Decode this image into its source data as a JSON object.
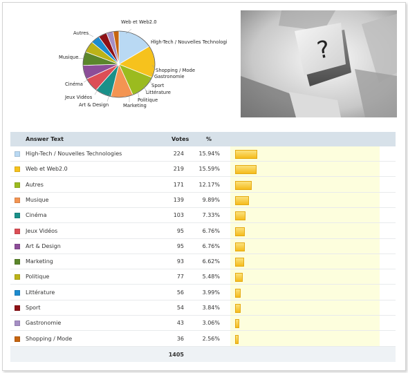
{
  "table": {
    "headers": {
      "answer": "Answer Text",
      "votes": "Votes",
      "percent": "%"
    },
    "total": "1405",
    "rows": [
      {
        "label": "High-Tech / Nouvelles Technologies",
        "votes": "224",
        "percent": "15.94%",
        "share": 0.1594,
        "color": "#b9d9f3"
      },
      {
        "label": "Web et Web2.0",
        "votes": "219",
        "percent": "15.59%",
        "share": 0.1559,
        "color": "#f6c21d"
      },
      {
        "label": "Autres",
        "votes": "171",
        "percent": "12.17%",
        "share": 0.1217,
        "color": "#9bbb1f"
      },
      {
        "label": "Musique",
        "votes": "139",
        "percent": "9.89%",
        "share": 0.0989,
        "color": "#f39452"
      },
      {
        "label": "Cinéma",
        "votes": "103",
        "percent": "7.33%",
        "share": 0.0733,
        "color": "#1a9089"
      },
      {
        "label": "Jeux Vidéos",
        "votes": "95",
        "percent": "6.76%",
        "share": 0.0676,
        "color": "#dc4e56"
      },
      {
        "label": "Art & Design",
        "votes": "95",
        "percent": "6.76%",
        "share": 0.0676,
        "color": "#8c4d98"
      },
      {
        "label": "Marketing",
        "votes": "93",
        "percent": "6.62%",
        "share": 0.0662,
        "color": "#5b862b"
      },
      {
        "label": "Politique",
        "votes": "77",
        "percent": "5.48%",
        "share": 0.0548,
        "color": "#bcb318"
      },
      {
        "label": "Littérature",
        "votes": "56",
        "percent": "3.99%",
        "share": 0.0399,
        "color": "#1d8bcf"
      },
      {
        "label": "Sport",
        "votes": "54",
        "percent": "3.84%",
        "share": 0.0384,
        "color": "#8e1116"
      },
      {
        "label": "Gastronomie",
        "votes": "43",
        "percent": "3.06%",
        "share": 0.0306,
        "color": "#a58fc4"
      },
      {
        "label": "Shopping / Mode",
        "votes": "36",
        "percent": "2.56%",
        "share": 0.0256,
        "color": "#c7650f"
      }
    ]
  },
  "pie_labels": {
    "web": "Web et Web2.0",
    "hightech": "High-Tech / Nouvelles Technologi",
    "autres": "Autres",
    "musique": "Musique",
    "cinema": "Cinéma",
    "jeux": "Jeux Vidéos",
    "art": "Art & Design",
    "marketing": "Marketing",
    "politique": "Politique",
    "litterature": "Littérature",
    "sport": "Sport",
    "gastronomie": "Gastronomie",
    "shopping": "Shopping / Mode"
  },
  "photo": {
    "key_symbol": "?"
  },
  "chart_data": {
    "type": "pie",
    "categories": [
      "High-Tech / Nouvelles Technologies",
      "Web et Web2.0",
      "Autres",
      "Musique",
      "Cinéma",
      "Jeux Vidéos",
      "Art & Design",
      "Marketing",
      "Politique",
      "Littérature",
      "Sport",
      "Gastronomie",
      "Shopping / Mode"
    ],
    "values": [
      224,
      219,
      171,
      139,
      103,
      95,
      95,
      93,
      77,
      56,
      54,
      43,
      36
    ],
    "colors": [
      "#b9d9f3",
      "#f6c21d",
      "#9bbb1f",
      "#f39452",
      "#1a9089",
      "#dc4e56",
      "#8c4d98",
      "#5b862b",
      "#bcb318",
      "#1d8bcf",
      "#8e1116",
      "#a58fc4",
      "#c7650f"
    ]
  }
}
